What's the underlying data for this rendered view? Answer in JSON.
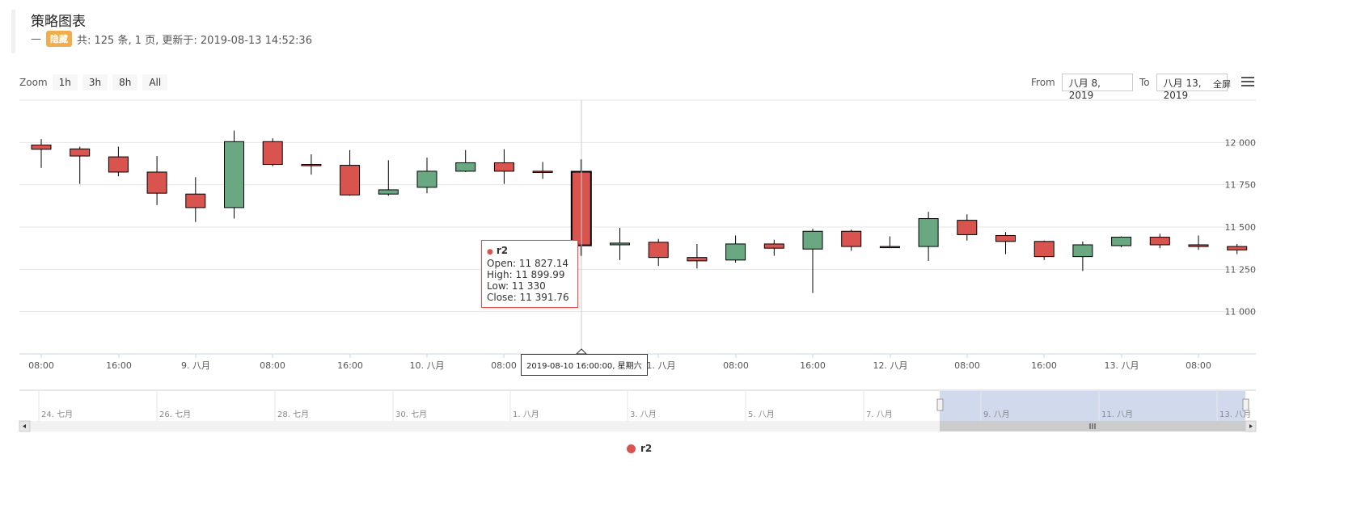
{
  "header": {
    "title": "策略图表",
    "dash": "—",
    "badge": "隐藏",
    "summary": "共: 125 条, 1 页, 更新于: 2019-08-13 14:52:36"
  },
  "toolbar": {
    "zoom_label": "Zoom",
    "zoom_buttons": [
      "1h",
      "3h",
      "8h",
      "All"
    ],
    "from_label": "From",
    "from_value": "八月 8, 2019",
    "to_label": "To",
    "to_value": "八月 13, 2019",
    "fullscreen_label": "全屏",
    "menu_icon": "hamburger-menu-icon"
  },
  "tooltip": {
    "series": "r2",
    "open": "Open: 11 827.14",
    "high": "High: 11 899.99",
    "low": "Low: 11 330",
    "close": "Close: 11 391.76"
  },
  "x_tooltip": "2019-08-10 16:00:00, 星期六",
  "legend": {
    "label": "r2",
    "color": "#d9534f"
  },
  "colors": {
    "up": "#6aa882",
    "down": "#d9534f"
  },
  "navigator": {
    "labels": [
      "24. 七月",
      "26. 七月",
      "28. 七月",
      "30. 七月",
      "1. 八月",
      "3. 八月",
      "5. 八月",
      "7. 八月",
      "9. 八月",
      "11. 八月",
      "13. 八月"
    ]
  },
  "chart_data": {
    "type": "candlestick",
    "series_name": "r2",
    "y_ticks": [
      "11 000",
      "11 250",
      "11 500",
      "11 750",
      "12 000"
    ],
    "y_tick_values": [
      11000,
      11250,
      11500,
      11750,
      12000
    ],
    "ylim": [
      10750,
      12250
    ],
    "x_ticks": [
      "08:00",
      "16:00",
      "9. 八月",
      "08:00",
      "16:00",
      "10. 八月",
      "08:00",
      "",
      "11. 八月",
      "08:00",
      "16:00",
      "12. 八月",
      "08:00",
      "16:00",
      "13. 八月",
      "08:00"
    ],
    "candles": [
      {
        "o": 11985,
        "h": 12020,
        "l": 11850,
        "c": 11960
      },
      {
        "o": 11962,
        "h": 11975,
        "l": 11755,
        "c": 11920
      },
      {
        "o": 11915,
        "h": 11975,
        "l": 11800,
        "c": 11825
      },
      {
        "o": 11825,
        "h": 11920,
        "l": 11630,
        "c": 11700
      },
      {
        "o": 11695,
        "h": 11795,
        "l": 11530,
        "c": 11615
      },
      {
        "o": 11615,
        "h": 12070,
        "l": 11550,
        "c": 12005
      },
      {
        "o": 12005,
        "h": 12025,
        "l": 11860,
        "c": 11870
      },
      {
        "o": 11870,
        "h": 11930,
        "l": 11810,
        "c": 11868
      },
      {
        "o": 11865,
        "h": 11955,
        "l": 11685,
        "c": 11690
      },
      {
        "o": 11695,
        "h": 11895,
        "l": 11685,
        "c": 11720
      },
      {
        "o": 11735,
        "h": 11910,
        "l": 11700,
        "c": 11830
      },
      {
        "o": 11830,
        "h": 11955,
        "l": 11825,
        "c": 11880
      },
      {
        "o": 11880,
        "h": 11960,
        "l": 11755,
        "c": 11830
      },
      {
        "o": 11830,
        "h": 11885,
        "l": 11785,
        "c": 11825
      },
      {
        "o": 11827.14,
        "h": 11899.99,
        "l": 11330,
        "c": 11391.76
      },
      {
        "o": 11395,
        "h": 11495,
        "l": 11305,
        "c": 11405
      },
      {
        "o": 11410,
        "h": 11430,
        "l": 11270,
        "c": 11320
      },
      {
        "o": 11320,
        "h": 11400,
        "l": 11255,
        "c": 11300
      },
      {
        "o": 11305,
        "h": 11450,
        "l": 11290,
        "c": 11400
      },
      {
        "o": 11400,
        "h": 11425,
        "l": 11330,
        "c": 11375
      },
      {
        "o": 11370,
        "h": 11490,
        "l": 11110,
        "c": 11475
      },
      {
        "o": 11475,
        "h": 11485,
        "l": 11360,
        "c": 11385
      },
      {
        "o": 11385,
        "h": 11445,
        "l": 11380,
        "c": 11383
      },
      {
        "o": 11385,
        "h": 11590,
        "l": 11300,
        "c": 11550
      },
      {
        "o": 11540,
        "h": 11575,
        "l": 11420,
        "c": 11455
      },
      {
        "o": 11450,
        "h": 11470,
        "l": 11340,
        "c": 11415
      },
      {
        "o": 11415,
        "h": 11420,
        "l": 11305,
        "c": 11325
      },
      {
        "o": 11325,
        "h": 11415,
        "l": 11240,
        "c": 11395
      },
      {
        "o": 11390,
        "h": 11445,
        "l": 11380,
        "c": 11440
      },
      {
        "o": 11440,
        "h": 11460,
        "l": 11375,
        "c": 11395
      },
      {
        "o": 11395,
        "h": 11450,
        "l": 11365,
        "c": 11385
      },
      {
        "o": 11385,
        "h": 11400,
        "l": 11340,
        "c": 11365
      }
    ]
  }
}
